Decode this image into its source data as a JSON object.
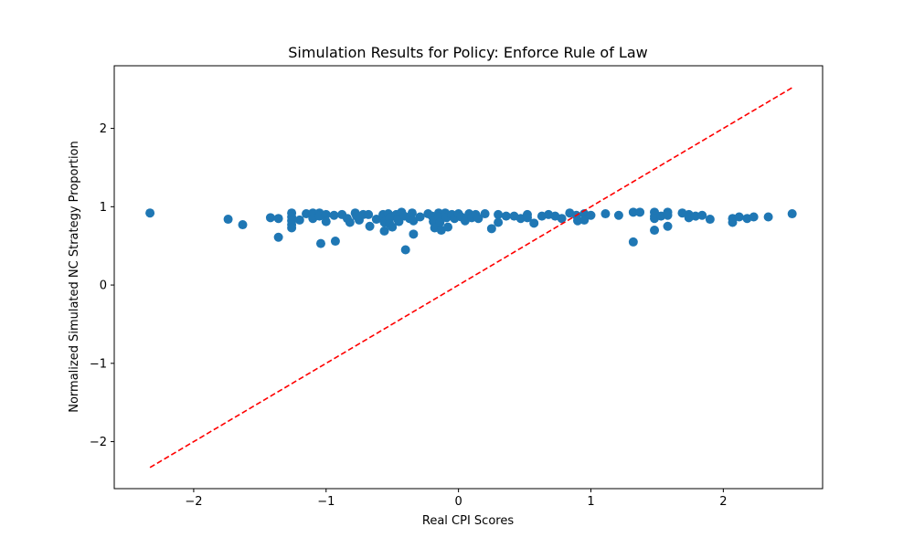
{
  "chart_data": {
    "type": "scatter",
    "title": "Simulation Results for Policy: Enforce Rule of Law",
    "xlabel": "Real CPI Scores",
    "ylabel": "Normalized Simulated NC Strategy Proportion",
    "xlim": [
      -2.6,
      2.75
    ],
    "ylim": [
      -2.6,
      2.8
    ],
    "xticks": [
      -2,
      -1,
      0,
      1,
      2
    ],
    "yticks": [
      -2,
      -1,
      0,
      1,
      2
    ],
    "grid": false,
    "point_color": "#1f77b4",
    "reference_line": {
      "style": "dashed",
      "color": "#ff0000",
      "x": [
        -2.33,
        2.52
      ],
      "y": [
        -2.33,
        2.52
      ]
    },
    "points": [
      {
        "x": -2.33,
        "y": 0.92
      },
      {
        "x": -1.74,
        "y": 0.84
      },
      {
        "x": -1.63,
        "y": 0.77
      },
      {
        "x": -1.42,
        "y": 0.86
      },
      {
        "x": -1.36,
        "y": 0.85
      },
      {
        "x": -1.36,
        "y": 0.61
      },
      {
        "x": -1.26,
        "y": 0.92
      },
      {
        "x": -1.26,
        "y": 0.87
      },
      {
        "x": -1.26,
        "y": 0.82
      },
      {
        "x": -1.26,
        "y": 0.77
      },
      {
        "x": -1.26,
        "y": 0.73
      },
      {
        "x": -1.2,
        "y": 0.83
      },
      {
        "x": -1.15,
        "y": 0.91
      },
      {
        "x": -1.1,
        "y": 0.92
      },
      {
        "x": -1.1,
        "y": 0.85
      },
      {
        "x": -1.05,
        "y": 0.92
      },
      {
        "x": -1.05,
        "y": 0.88
      },
      {
        "x": -1.04,
        "y": 0.53
      },
      {
        "x": -1.0,
        "y": 0.9
      },
      {
        "x": -1.0,
        "y": 0.81
      },
      {
        "x": -0.94,
        "y": 0.89
      },
      {
        "x": -0.93,
        "y": 0.56
      },
      {
        "x": -0.88,
        "y": 0.9
      },
      {
        "x": -0.84,
        "y": 0.85
      },
      {
        "x": -0.82,
        "y": 0.8
      },
      {
        "x": -0.78,
        "y": 0.92
      },
      {
        "x": -0.77,
        "y": 0.88
      },
      {
        "x": -0.75,
        "y": 0.83
      },
      {
        "x": -0.72,
        "y": 0.9
      },
      {
        "x": -0.68,
        "y": 0.9
      },
      {
        "x": -0.67,
        "y": 0.75
      },
      {
        "x": -0.62,
        "y": 0.84
      },
      {
        "x": -0.57,
        "y": 0.9
      },
      {
        "x": -0.57,
        "y": 0.86
      },
      {
        "x": -0.56,
        "y": 0.8
      },
      {
        "x": -0.56,
        "y": 0.69
      },
      {
        "x": -0.53,
        "y": 0.91
      },
      {
        "x": -0.52,
        "y": 0.86
      },
      {
        "x": -0.52,
        "y": 0.78
      },
      {
        "x": -0.5,
        "y": 0.74
      },
      {
        "x": -0.47,
        "y": 0.9
      },
      {
        "x": -0.46,
        "y": 0.84
      },
      {
        "x": -0.45,
        "y": 0.81
      },
      {
        "x": -0.43,
        "y": 0.93
      },
      {
        "x": -0.41,
        "y": 0.88
      },
      {
        "x": -0.4,
        "y": 0.45
      },
      {
        "x": -0.37,
        "y": 0.85
      },
      {
        "x": -0.35,
        "y": 0.92
      },
      {
        "x": -0.34,
        "y": 0.82
      },
      {
        "x": -0.34,
        "y": 0.65
      },
      {
        "x": -0.29,
        "y": 0.87
      },
      {
        "x": -0.23,
        "y": 0.91
      },
      {
        "x": -0.2,
        "y": 0.88
      },
      {
        "x": -0.19,
        "y": 0.81
      },
      {
        "x": -0.18,
        "y": 0.73
      },
      {
        "x": -0.15,
        "y": 0.92
      },
      {
        "x": -0.15,
        "y": 0.87
      },
      {
        "x": -0.14,
        "y": 0.8
      },
      {
        "x": -0.13,
        "y": 0.7
      },
      {
        "x": -0.1,
        "y": 0.92
      },
      {
        "x": -0.09,
        "y": 0.86
      },
      {
        "x": -0.08,
        "y": 0.74
      },
      {
        "x": -0.05,
        "y": 0.9
      },
      {
        "x": -0.03,
        "y": 0.85
      },
      {
        "x": 0.0,
        "y": 0.91
      },
      {
        "x": 0.02,
        "y": 0.87
      },
      {
        "x": 0.05,
        "y": 0.82
      },
      {
        "x": 0.08,
        "y": 0.91
      },
      {
        "x": 0.1,
        "y": 0.86
      },
      {
        "x": 0.13,
        "y": 0.9
      },
      {
        "x": 0.15,
        "y": 0.85
      },
      {
        "x": 0.2,
        "y": 0.91
      },
      {
        "x": 0.25,
        "y": 0.72
      },
      {
        "x": 0.3,
        "y": 0.9
      },
      {
        "x": 0.3,
        "y": 0.8
      },
      {
        "x": 0.36,
        "y": 0.88
      },
      {
        "x": 0.42,
        "y": 0.88
      },
      {
        "x": 0.47,
        "y": 0.85
      },
      {
        "x": 0.52,
        "y": 0.9
      },
      {
        "x": 0.52,
        "y": 0.86
      },
      {
        "x": 0.57,
        "y": 0.79
      },
      {
        "x": 0.63,
        "y": 0.88
      },
      {
        "x": 0.68,
        "y": 0.9
      },
      {
        "x": 0.73,
        "y": 0.88
      },
      {
        "x": 0.78,
        "y": 0.85
      },
      {
        "x": 0.84,
        "y": 0.92
      },
      {
        "x": 0.89,
        "y": 0.89
      },
      {
        "x": 0.9,
        "y": 0.82
      },
      {
        "x": 0.95,
        "y": 0.91
      },
      {
        "x": 0.95,
        "y": 0.83
      },
      {
        "x": 1.0,
        "y": 0.89
      },
      {
        "x": 1.11,
        "y": 0.91
      },
      {
        "x": 1.21,
        "y": 0.89
      },
      {
        "x": 1.32,
        "y": 0.93
      },
      {
        "x": 1.32,
        "y": 0.55
      },
      {
        "x": 1.37,
        "y": 0.93
      },
      {
        "x": 1.48,
        "y": 0.93
      },
      {
        "x": 1.48,
        "y": 0.88
      },
      {
        "x": 1.48,
        "y": 0.85
      },
      {
        "x": 1.48,
        "y": 0.7
      },
      {
        "x": 1.53,
        "y": 0.88
      },
      {
        "x": 1.58,
        "y": 0.93
      },
      {
        "x": 1.58,
        "y": 0.89
      },
      {
        "x": 1.58,
        "y": 0.75
      },
      {
        "x": 1.69,
        "y": 0.92
      },
      {
        "x": 1.74,
        "y": 0.9
      },
      {
        "x": 1.74,
        "y": 0.86
      },
      {
        "x": 1.79,
        "y": 0.88
      },
      {
        "x": 1.84,
        "y": 0.89
      },
      {
        "x": 1.9,
        "y": 0.84
      },
      {
        "x": 2.07,
        "y": 0.85
      },
      {
        "x": 2.07,
        "y": 0.8
      },
      {
        "x": 2.12,
        "y": 0.87
      },
      {
        "x": 2.18,
        "y": 0.85
      },
      {
        "x": 2.23,
        "y": 0.87
      },
      {
        "x": 2.34,
        "y": 0.87
      },
      {
        "x": 2.52,
        "y": 0.91
      }
    ]
  }
}
